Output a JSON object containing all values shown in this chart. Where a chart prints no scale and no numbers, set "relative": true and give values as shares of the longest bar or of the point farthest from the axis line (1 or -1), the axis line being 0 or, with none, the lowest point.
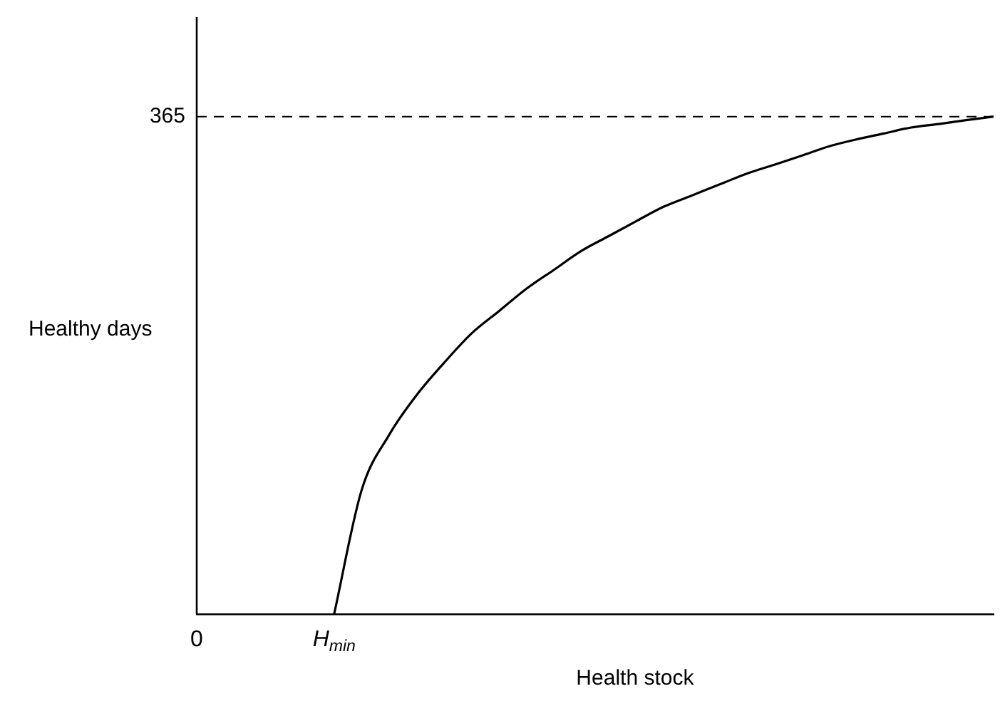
{
  "chart_data": {
    "type": "line",
    "xlabel": "Health stock",
    "ylabel": "Healthy days",
    "relative": true,
    "categories": [
      "0",
      null,
      null,
      null,
      null,
      "H$_{min}$",
      null,
      null,
      null,
      null,
      null,
      null,
      null,
      null,
      null,
      null,
      null,
      null,
      null,
      null,
      null,
      null,
      null,
      null,
      null,
      null,
      null,
      null,
      null,
      null
    ],
    "series": [
      {
        "color": "#000000",
        "values": [
          null,
          null,
          null,
          null,
          null,
          0,
          0.249,
          0.36,
          0.44,
          0.505,
          0.564,
          0.609,
          0.654,
          0.692,
          0.73,
          0.76,
          0.79,
          0.819,
          0.841,
          0.863,
          0.885,
          0.903,
          0.921,
          0.94,
          0.954,
          0.966,
          0.978,
          0.985,
          0.993,
          1
        ]
      }
    ],
    "ref_lines": [
      {
        "axis": "y",
        "value": 1,
        "line_style": "dashed",
        "color": "#000000"
      }
    ],
    "annotations": [
      "365"
    ],
    "grid": false,
    "legend": false,
    "marker": "none",
    "line_style": "solid"
  }
}
